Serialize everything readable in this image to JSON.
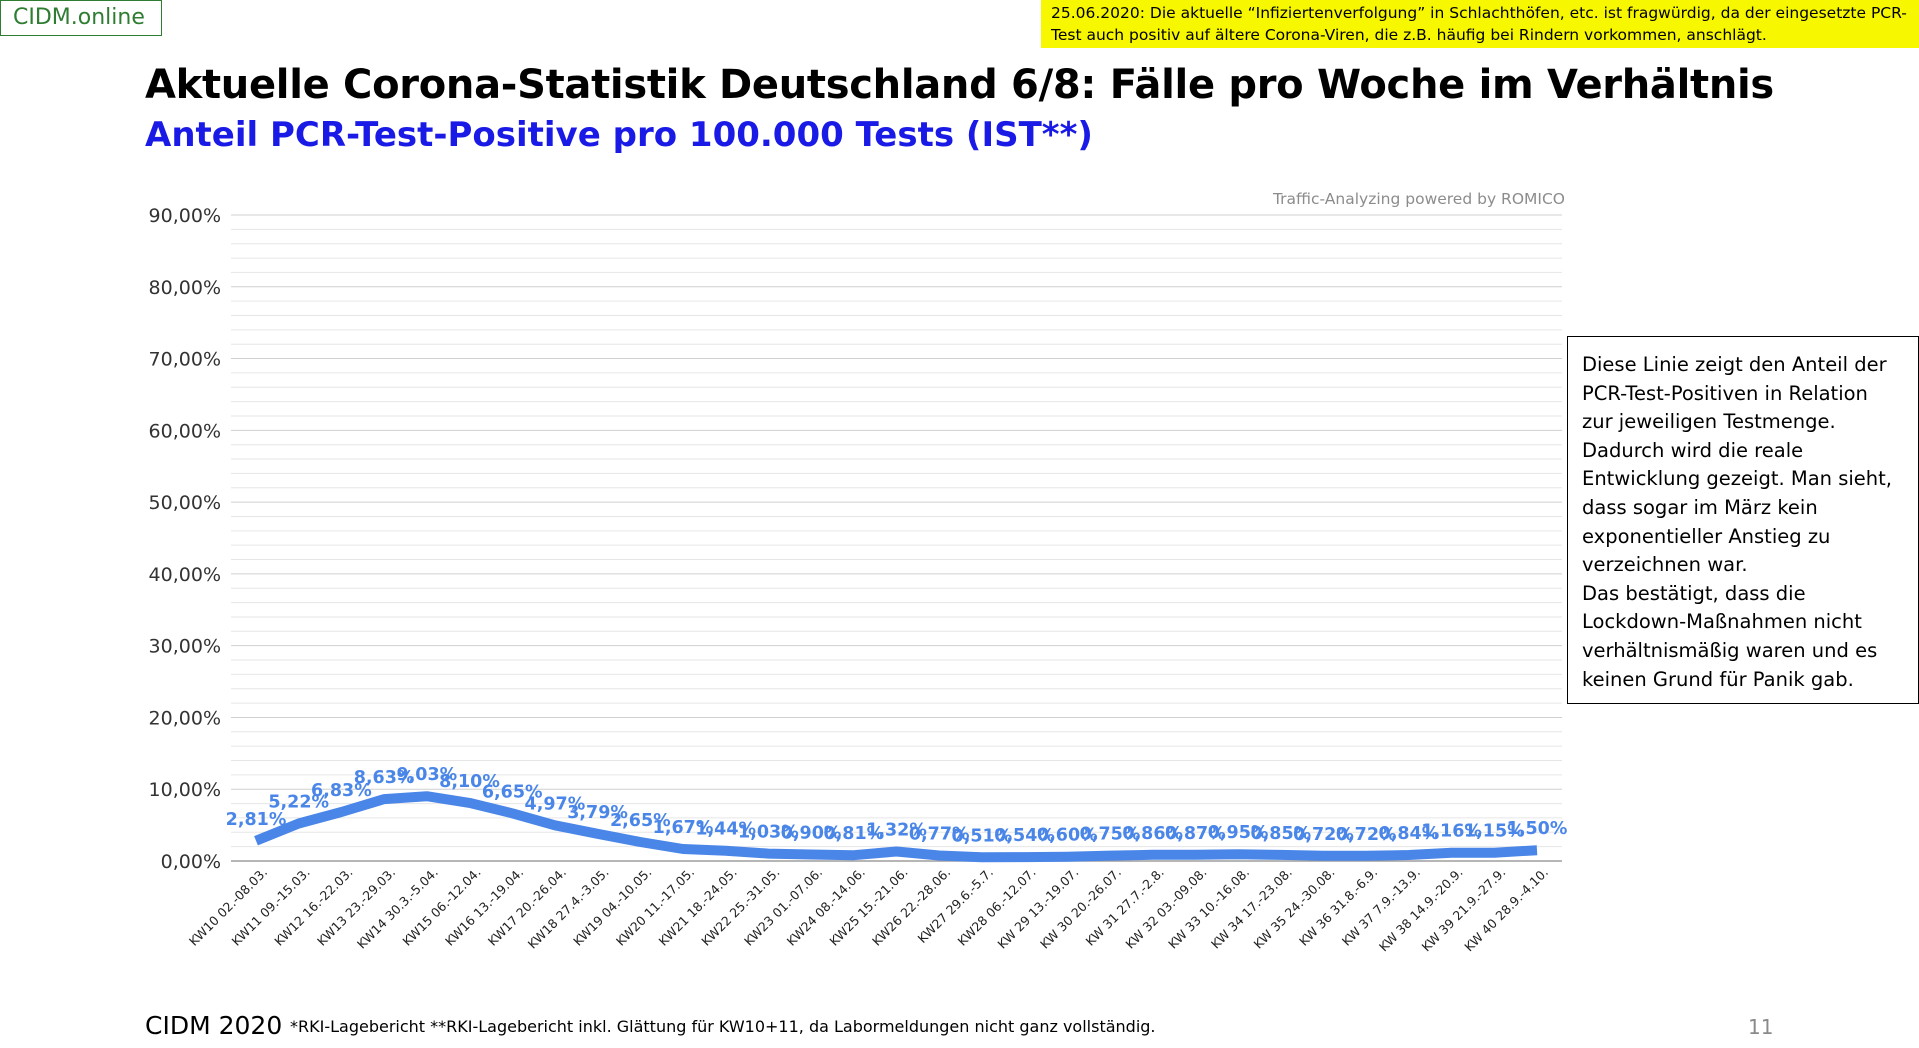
{
  "brand": "CIDM.online",
  "top_note": "25.06.2020: Die aktuelle “Infiziertenverfolgung” in Schlachthöfen, etc. ist fragwürdig, da der eingesetzte PCR-Test auch positiv auf ältere Corona-Viren, die z.B. häufig bei Rindern vorkommen, anschlägt.",
  "callout": "Diese Linie zeigt den Anteil der\nPCR-Test-Positiven in Relation\nzur jeweiligen Testmenge.\nDadurch wird die reale\nEntwicklung gezeigt. Man sieht,\ndass sogar im März kein\nexponentieller Anstieg zu\nverzeichnen war.\nDas bestätigt, dass die\nLockdown-Maßnahmen nicht\nverhältnismäßig waren und es\nkeinen Grund für Panik gab.",
  "footer": {
    "left": "CIDM 2020",
    "note": "*RKI-Lagebericht   **RKI-Lagebericht inkl. Glättung für KW10+11, da Labormeldungen nicht ganz vollständig.",
    "page_number": "11"
  },
  "chart_data": {
    "type": "line",
    "title": "Aktuelle Corona-Statistik Deutschland 6/8: Fälle pro Woche im Verhältnis",
    "subtitle": "Anteil PCR-Test-Positive pro 100.000 Tests (IST**)",
    "watermark": "Traffic-Analyzing powered by ROMICO",
    "ylim": [
      0,
      90
    ],
    "yticks": [
      0,
      10,
      20,
      30,
      40,
      50,
      60,
      70,
      80,
      90
    ],
    "ytick_labels": [
      "0,00%",
      "10,00%",
      "20,00%",
      "30,00%",
      "40,00%",
      "50,00%",
      "60,00%",
      "70,00%",
      "80,00%",
      "90,00%"
    ],
    "grid": true,
    "line_color": "#4a86e8",
    "label_color": "#4a86e8",
    "categories": [
      "KW10 02.-08.03.",
      "KW11 09.-15.03.",
      "KW12 16.-22.03.",
      "KW13 23.-29.03.",
      "KW14 30.3.-5.04.",
      "KW15 06.-12.04.",
      "KW16 13.-19.04.",
      "KW17 20.-26.04.",
      "KW18 27.4.-3.05.",
      "KW19 04.-10.05.",
      "KW20 11.-17.05.",
      "KW21 18.-24.05.",
      "KW22 25.-31.05.",
      "KW23 01.-07.06.",
      "KW24 08.-14.06.",
      "KW25 15.-21.06.",
      "KW26 22.-28.06.",
      "KW27 29.6.-5.7.",
      "KW28 06.-12.07.",
      "KW 29 13.-19.07.",
      "KW 30 20.-26.07.",
      "KW 31 27.7.-2.8.",
      "KW 32 03.-09.08.",
      "KW 33 10.-16.08.",
      "KW 34 17.-23.08.",
      "KW 35 24.-30.08.",
      "KW 36 31.8.-6.9.",
      "KW 37 7.9.-13.9.",
      "KW 38 14.9.-20.9.",
      "KW 39 21.9.-27.9.",
      "KW 40 28.9.-4.10."
    ],
    "values": [
      2.81,
      5.22,
      6.83,
      8.63,
      9.03,
      8.1,
      6.65,
      4.97,
      3.79,
      2.65,
      1.67,
      1.44,
      1.03,
      0.9,
      0.81,
      1.32,
      0.77,
      0.51,
      0.54,
      0.6,
      0.75,
      0.86,
      0.87,
      0.95,
      0.85,
      0.72,
      0.72,
      0.84,
      1.16,
      1.15,
      1.5
    ],
    "value_labels": [
      "2,81%",
      "5,22%",
      "6,83%",
      "8,63%",
      "9,03%",
      "8,10%",
      "6,65%",
      "4,97%",
      "3,79%",
      "2,65%",
      "1,67%",
      "1,44%",
      "1,03%",
      "0,90%",
      "0,81%",
      "1,32%",
      "0,77%",
      "0,51%",
      "0,54%",
      "0,60%",
      "0,75%",
      "0,86%",
      "0,87%",
      "0,95%",
      "0,85%",
      "0,72%",
      "0,72%",
      "0,84%",
      "1,16%",
      "1,15%",
      "1,50%"
    ]
  }
}
